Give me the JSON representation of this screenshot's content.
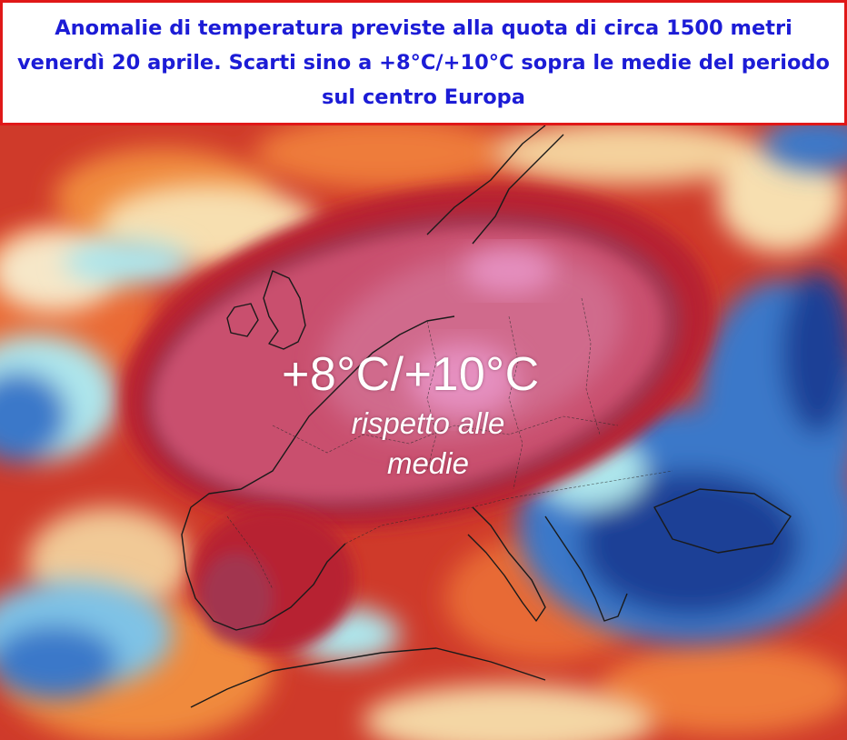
{
  "header": {
    "title": "Anomalie di temperatura previste alla quota di circa 1500 metri\nvenerdì 20 aprile. Scarti sino a +8°C/+10°C sopra le medie del periodo\nsul centro Europa"
  },
  "map": {
    "label_anomaly": "+8°C/+10°C",
    "label_subtitle": "rispetto alle medie"
  },
  "colors": {
    "header_text": "#1c1cd6",
    "header_border": "#e01818",
    "anomaly_core": "#c94f6e",
    "anomaly_peak": "#e58fbf",
    "warm_dark": "#b72233",
    "warm": "#e0482a",
    "warm_light": "#f08a3c",
    "neutral_light": "#f7dfb0",
    "cold_light": "#aee6ec",
    "cold": "#3b78c9",
    "cold_dark": "#1d3f96"
  }
}
